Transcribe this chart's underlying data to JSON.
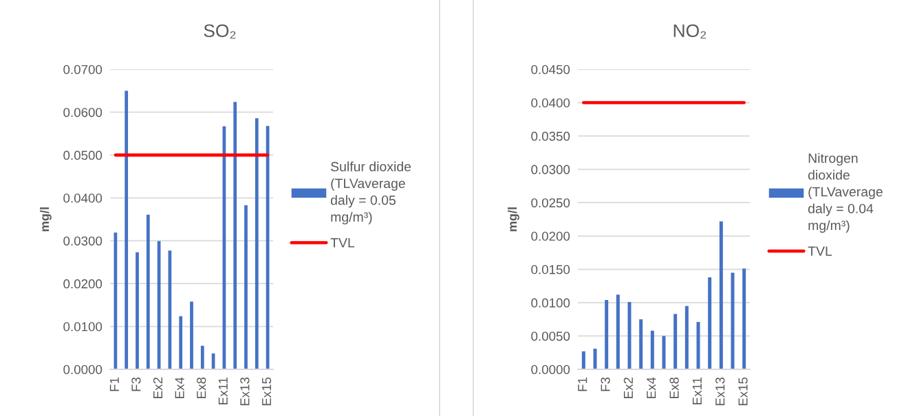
{
  "chart_data": [
    {
      "type": "bar",
      "title": "SO₂",
      "ylabel": "mg/l",
      "categories": [
        "F1",
        null,
        "F3",
        null,
        "Ex2",
        null,
        "Ex4",
        null,
        "Ex8",
        null,
        "Ex11",
        null,
        "Ex13",
        null,
        "Ex15"
      ],
      "series": [
        {
          "name": "Sulfur dioxide (TLVaverage daly = 0.05 mg/m³)",
          "color": "#4472c4",
          "values": [
            0.0319,
            0.065,
            0.0273,
            0.0361,
            0.0299,
            0.0277,
            0.0124,
            0.0158,
            0.0055,
            0.0037,
            0.0567,
            0.0624,
            0.0383,
            0.0586,
            0.0568
          ]
        },
        {
          "name": "TVL",
          "type": "line",
          "color": "#ff0000",
          "values": [
            0.05,
            0.05,
            0.05,
            0.05,
            0.05,
            0.05,
            0.05,
            0.05,
            0.05,
            0.05,
            0.05,
            0.05,
            0.05,
            0.05,
            0.05
          ]
        }
      ],
      "ylim": [
        0,
        0.07
      ],
      "yticks": [
        {
          "value": 0,
          "label": "0.0000"
        },
        {
          "value": 0.01,
          "label": "0.0100"
        },
        {
          "value": 0.02,
          "label": "0.0200"
        },
        {
          "value": 0.03,
          "label": "0.0300"
        },
        {
          "value": 0.04,
          "label": "0.0400"
        },
        {
          "value": 0.05,
          "label": "0.0500"
        },
        {
          "value": 0.06,
          "label": "0.0600"
        },
        {
          "value": 0.07,
          "label": "0.0700"
        }
      ],
      "grid": "y",
      "legend": "right"
    },
    {
      "type": "bar",
      "title": "NO₂",
      "ylabel": "mg/l",
      "categories": [
        "F1",
        null,
        "F3",
        null,
        "Ex2",
        null,
        "Ex4",
        null,
        "Ex8",
        null,
        "Ex11",
        null,
        "Ex13",
        null,
        "Ex15"
      ],
      "series": [
        {
          "name": "Nitrogen dioxide (TLVaverage daly = 0.04 mg/m³)",
          "color": "#4472c4",
          "values": [
            0.0027,
            0.0031,
            0.0104,
            0.0112,
            0.0101,
            0.0075,
            0.0058,
            0.005,
            0.0083,
            0.0095,
            0.0071,
            0.0138,
            0.0222,
            0.0145,
            0.0151
          ]
        },
        {
          "name": "TVL",
          "type": "line",
          "color": "#ff0000",
          "values": [
            0.04,
            0.04,
            0.04,
            0.04,
            0.04,
            0.04,
            0.04,
            0.04,
            0.04,
            0.04,
            0.04,
            0.04,
            0.04,
            0.04,
            0.04
          ]
        }
      ],
      "ylim": [
        0,
        0.045
      ],
      "yticks": [
        {
          "value": 0,
          "label": "0.0000"
        },
        {
          "value": 0.005,
          "label": "0.0050"
        },
        {
          "value": 0.01,
          "label": "0.0100"
        },
        {
          "value": 0.015,
          "label": "0.0150"
        },
        {
          "value": 0.02,
          "label": "0.0200"
        },
        {
          "value": 0.025,
          "label": "0.0250"
        },
        {
          "value": 0.03,
          "label": "0.0300"
        },
        {
          "value": 0.035,
          "label": "0.0350"
        },
        {
          "value": 0.04,
          "label": "0.0400"
        },
        {
          "value": 0.045,
          "label": "0.0450"
        }
      ],
      "grid": "y",
      "legend": "right"
    }
  ]
}
